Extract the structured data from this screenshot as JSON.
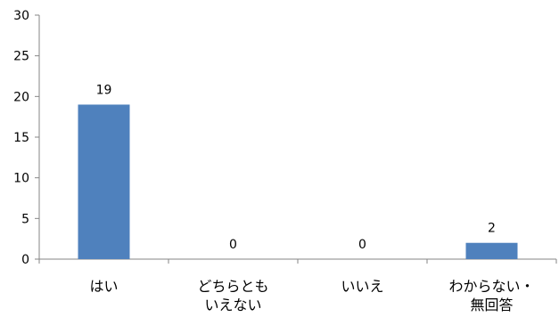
{
  "chart_data": {
    "type": "bar",
    "categories": [
      "はい",
      "どちらとも いえない",
      "いいえ",
      "わからない・ 無回答"
    ],
    "category_lines": [
      [
        "はい"
      ],
      [
        "どちらとも",
        "いえない"
      ],
      [
        "いいえ"
      ],
      [
        "わからない・",
        "無回答"
      ]
    ],
    "values": [
      19,
      0,
      0,
      2
    ],
    "data_labels": [
      "19",
      "0",
      "0",
      "2"
    ],
    "y_ticks": [
      "0",
      "5",
      "10",
      "15",
      "20",
      "25",
      "30"
    ],
    "ylim": [
      0,
      30
    ],
    "title": "",
    "xlabel": "",
    "ylabel": "",
    "grid": false,
    "legend": false,
    "bar_color": "#4f81bd",
    "axis_color": "#868686"
  }
}
